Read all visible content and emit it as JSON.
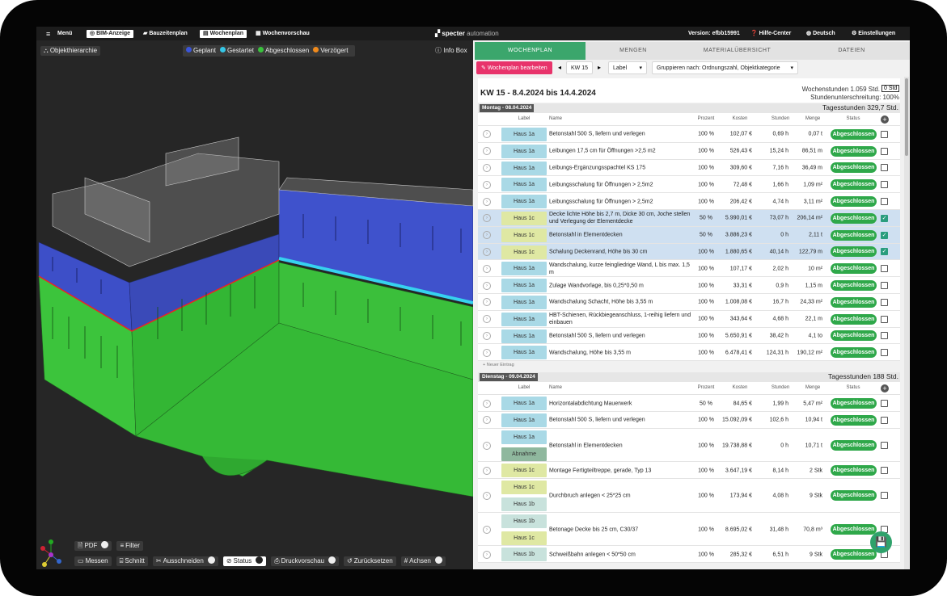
{
  "topbar": {
    "menu": "Menü",
    "tabs": [
      "BIM-Anzeige",
      "Bauzeitenplan",
      "Wochenplan",
      "Wochenvorschau"
    ],
    "logo_brand": "specter",
    "logo_suffix": "automation",
    "version": "Version: efbb15991",
    "help": "Hilfe-Center",
    "language": "Deutsch",
    "settings": "Einstellungen"
  },
  "viewer": {
    "hierarchy": "Objekthierarchie",
    "legend": [
      {
        "name": "Geplant",
        "color": "#3b55d9"
      },
      {
        "name": "Gestartet",
        "color": "#35c6e6"
      },
      {
        "name": "Abgeschlossen",
        "color": "#39c13c"
      },
      {
        "name": "Verzögert",
        "color": "#f08a1c"
      }
    ],
    "info": "Info Box",
    "toolbar_top": [
      "PDF",
      "Filter"
    ],
    "toolbar_bottom": [
      "Messen",
      "Schnitt",
      "Ausschneiden",
      "Status",
      "Druckvorschau",
      "Zurücksetzen",
      "Achsen"
    ]
  },
  "panel": {
    "tabs": [
      "WOCHENPLAN",
      "MENGEN",
      "MATERIALÜBERSICHT",
      "DATEIEN"
    ],
    "edit_button": "Wochenplan bearbeiten",
    "week": "KW 15",
    "label_filter": "Label",
    "group_by": "Gruppieren nach: Ordnungszahl, Objektkategorie",
    "heading": "KW 15 - 8.4.2024 bis 14.4.2024",
    "week_hours": "Wochenstunden 1.059 Std.",
    "hours_input": "0 Std",
    "shortfall": "Stundenunterschreitung: 100%",
    "columns": [
      "Label",
      "Name",
      "Prozent",
      "Kosten",
      "Stunden",
      "Menge",
      "Status"
    ],
    "days": [
      {
        "title": "Montag - 08.04.2024",
        "hours": "Tagesstunden 329,7 Std.",
        "new_entry": "+ Neuer Eintrag",
        "rows": [
          {
            "labels": [
              {
                "text": "Haus 1a",
                "color": "#a9d9e6"
              }
            ],
            "name": "Betonstahl 500 S, liefern und verlegen",
            "percent": "100 %",
            "cost": "102,07 €",
            "hours": "0,69 h",
            "quantity": "0,07 t",
            "status": "Abgeschlossen",
            "checked": false,
            "highlighted": false
          },
          {
            "labels": [
              {
                "text": "Haus 1a",
                "color": "#a9d9e6"
              }
            ],
            "name": "Leibungen 17,5 cm für Öffnungen >2,5 m2",
            "percent": "100 %",
            "cost": "526,43 €",
            "hours": "15,24 h",
            "quantity": "86,51 m",
            "status": "Abgeschlossen",
            "checked": false,
            "highlighted": false
          },
          {
            "labels": [
              {
                "text": "Haus 1a",
                "color": "#a9d9e6"
              }
            ],
            "name": "Leibungs-Ergänzungsspachtel KS 175",
            "percent": "100 %",
            "cost": "309,60 €",
            "hours": "7,16 h",
            "quantity": "36,49 m",
            "status": "Abgeschlossen",
            "checked": false,
            "highlighted": false
          },
          {
            "labels": [
              {
                "text": "Haus 1a",
                "color": "#a9d9e6"
              }
            ],
            "name": "Leibungsschalung für Öffnungen > 2,5m2",
            "percent": "100 %",
            "cost": "72,48 €",
            "hours": "1,66 h",
            "quantity": "1,09 m²",
            "status": "Abgeschlossen",
            "checked": false,
            "highlighted": false
          },
          {
            "labels": [
              {
                "text": "Haus 1a",
                "color": "#a9d9e6"
              }
            ],
            "name": "Leibungsschalung für Öffnungen > 2,5m2",
            "percent": "100 %",
            "cost": "206,42 €",
            "hours": "4,74 h",
            "quantity": "3,11 m²",
            "status": "Abgeschlossen",
            "checked": false,
            "highlighted": false
          },
          {
            "labels": [
              {
                "text": "Haus 1c",
                "color": "#dfe8a3"
              }
            ],
            "name": "Decke lichte Höhe bis 2,7 m, Dicke 30 cm, Joche stellen und Verlegung der Elementdecke",
            "percent": "50 %",
            "cost": "5.990,01 €",
            "hours": "73,07 h",
            "quantity": "206,14 m²",
            "status": "Abgeschlossen",
            "checked": true,
            "highlighted": true
          },
          {
            "labels": [
              {
                "text": "Haus 1c",
                "color": "#dfe8a3"
              }
            ],
            "name": "Betonstahl in Elementdecken",
            "percent": "50 %",
            "cost": "3.886,23 €",
            "hours": "0 h",
            "quantity": "2,11 t",
            "status": "Abgeschlossen",
            "checked": true,
            "highlighted": true
          },
          {
            "labels": [
              {
                "text": "Haus 1c",
                "color": "#dfe8a3"
              }
            ],
            "name": "Schalung Deckenrand, Höhe bis 30 cm",
            "percent": "100 %",
            "cost": "1.880,65 €",
            "hours": "40,14 h",
            "quantity": "122,79 m",
            "status": "Abgeschlossen",
            "checked": true,
            "highlighted": true
          },
          {
            "labels": [
              {
                "text": "Haus 1a",
                "color": "#a9d9e6"
              }
            ],
            "name": "Wandschalung, kurze feingliedrige Wand, L bis max. 1,5 m",
            "percent": "100 %",
            "cost": "107,17 €",
            "hours": "2,02 h",
            "quantity": "10 m²",
            "status": "Abgeschlossen",
            "checked": false,
            "highlighted": false
          },
          {
            "labels": [
              {
                "text": "Haus 1a",
                "color": "#a9d9e6"
              }
            ],
            "name": "Zulage Wandvorlage, bis 0,25*0,50 m",
            "percent": "100 %",
            "cost": "33,31 €",
            "hours": "0,9 h",
            "quantity": "1,15 m",
            "status": "Abgeschlossen",
            "checked": false,
            "highlighted": false
          },
          {
            "labels": [
              {
                "text": "Haus 1a",
                "color": "#a9d9e6"
              }
            ],
            "name": "Wandschalung Schacht, Höhe bis 3,55 m",
            "percent": "100 %",
            "cost": "1.008,08 €",
            "hours": "16,7 h",
            "quantity": "24,33 m²",
            "status": "Abgeschlossen",
            "checked": false,
            "highlighted": false
          },
          {
            "labels": [
              {
                "text": "Haus 1a",
                "color": "#a9d9e6"
              }
            ],
            "name": "HBT-Schienen, Rückbiegeanschluss, 1-reihig liefern und einbauen",
            "percent": "100 %",
            "cost": "343,64 €",
            "hours": "4,68 h",
            "quantity": "22,1 m",
            "status": "Abgeschlossen",
            "checked": false,
            "highlighted": false
          },
          {
            "labels": [
              {
                "text": "Haus 1a",
                "color": "#a9d9e6"
              }
            ],
            "name": "Betonstahl 500 S, liefern und verlegen",
            "percent": "100 %",
            "cost": "5.650,91 €",
            "hours": "38,42 h",
            "quantity": "4,1 to",
            "status": "Abgeschlossen",
            "checked": false,
            "highlighted": false
          },
          {
            "labels": [
              {
                "text": "Haus 1a",
                "color": "#a9d9e6"
              }
            ],
            "name": "Wandschalung, Höhe bis 3,55 m",
            "percent": "100 %",
            "cost": "6.478,41 €",
            "hours": "124,31 h",
            "quantity": "190,12 m²",
            "status": "Abgeschlossen",
            "checked": false,
            "highlighted": false
          }
        ]
      },
      {
        "title": "Dienstag - 09.04.2024",
        "hours": "Tagesstunden 188 Std.",
        "rows": [
          {
            "labels": [
              {
                "text": "Haus 1a",
                "color": "#a9d9e6"
              }
            ],
            "name": "Horizontalabdichtung Mauerwerk",
            "percent": "50 %",
            "cost": "84,65 €",
            "hours": "1,99 h",
            "quantity": "5,47 m²",
            "status": "Abgeschlossen",
            "checked": false,
            "highlighted": false
          },
          {
            "labels": [
              {
                "text": "Haus 1a",
                "color": "#a9d9e6"
              }
            ],
            "name": "Betonstahl 500 S, liefern und verlegen",
            "percent": "100 %",
            "cost": "15.092,09 €",
            "hours": "102,6 h",
            "quantity": "10,94 t",
            "status": "Abgeschlossen",
            "checked": false,
            "highlighted": false
          },
          {
            "labels": [
              {
                "text": "Haus 1a",
                "color": "#a9d9e6"
              },
              {
                "text": "Abnahme Prüfst...",
                "color": "#8fb89e"
              }
            ],
            "name": "Betonstahl in Elementdecken",
            "percent": "100 %",
            "cost": "19.738,88 €",
            "hours": "0 h",
            "quantity": "10,71 t",
            "status": "Abgeschlossen",
            "checked": false,
            "highlighted": false
          },
          {
            "labels": [
              {
                "text": "Haus 1c",
                "color": "#dfe8a3"
              }
            ],
            "name": "Montage Fertigteiltreppe, gerade, Typ 13",
            "percent": "100 %",
            "cost": "3.647,19 €",
            "hours": "8,14 h",
            "quantity": "2 Stk",
            "status": "Abgeschlossen",
            "checked": false,
            "highlighted": false
          },
          {
            "labels": [
              {
                "text": "Haus 1c",
                "color": "#dfe8a3"
              },
              {
                "text": "Haus 1b",
                "color": "#c8e2dc"
              }
            ],
            "name": "Durchbruch anlegen < 25*25 cm",
            "percent": "100 %",
            "cost": "173,94 €",
            "hours": "4,08 h",
            "quantity": "9 Stk",
            "status": "Abgeschlossen",
            "checked": false,
            "highlighted": false
          },
          {
            "labels": [
              {
                "text": "Haus 1b",
                "color": "#c8e2dc"
              },
              {
                "text": "Haus 1c",
                "color": "#dfe8a3"
              }
            ],
            "name": "Betonage Decke bis 25 cm, C30/37",
            "percent": "100 %",
            "cost": "8.695,02 €",
            "hours": "31,48 h",
            "quantity": "70,8 m³",
            "status": "Abgeschlossen",
            "checked": false,
            "highlighted": false
          },
          {
            "labels": [
              {
                "text": "Haus 1b",
                "color": "#c8e2dc"
              }
            ],
            "name": "Schweißbahn anlegen < 50*50 cm",
            "percent": "100 %",
            "cost": "285,32 €",
            "hours": "6,51 h",
            "quantity": "9 Stk",
            "status": "Abgeschlossen",
            "checked": false,
            "highlighted": false
          }
        ]
      }
    ]
  }
}
